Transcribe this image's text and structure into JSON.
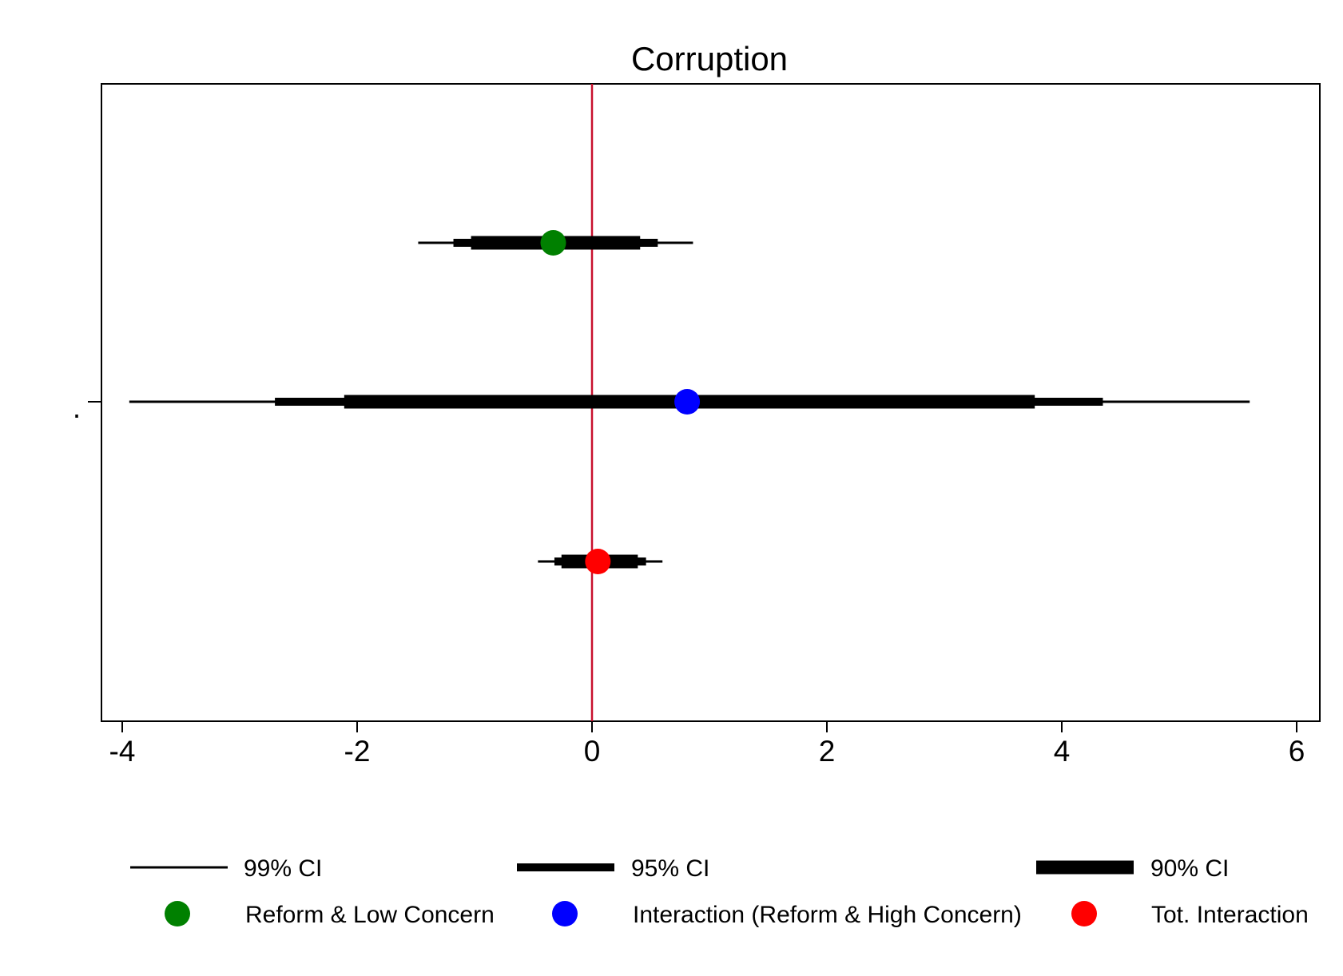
{
  "chart_data": {
    "type": "coefficient-plot",
    "title": "Corruption",
    "y_tick_label": ".",
    "xlim": [
      -4.2,
      6.2
    ],
    "x_ticks": [
      "-4",
      "-2",
      "0",
      "2",
      "4",
      "6"
    ],
    "x_tick_values": [
      -4,
      -2,
      0,
      2,
      4,
      6
    ],
    "reference_line": {
      "x": 0,
      "color": "#c8102e"
    },
    "series": [
      {
        "name": "Reform & Low Concern",
        "color": "#008000",
        "estimate": -0.33,
        "ci99": [
          -1.48,
          0.86
        ],
        "ci95": [
          -1.18,
          0.56
        ],
        "ci90": [
          -1.03,
          0.41
        ]
      },
      {
        "name": "Interaction (Reform & High Concern)",
        "color": "#0000ff",
        "estimate": 0.81,
        "ci99": [
          -3.94,
          5.6
        ],
        "ci95": [
          -2.7,
          4.35
        ],
        "ci90": [
          -2.11,
          3.77
        ]
      },
      {
        "name": "Tot. Interaction",
        "color": "#ff0000",
        "estimate": 0.05,
        "ci99": [
          -0.46,
          0.6
        ],
        "ci95": [
          -0.32,
          0.46
        ],
        "ci90": [
          -0.26,
          0.39
        ]
      }
    ],
    "legend": {
      "ci_items": [
        {
          "label": "99% CI",
          "level": "ci99"
        },
        {
          "label": "95% CI",
          "level": "ci95"
        },
        {
          "label": "90% CI",
          "level": "ci90"
        }
      ],
      "placement": "bottom"
    }
  }
}
